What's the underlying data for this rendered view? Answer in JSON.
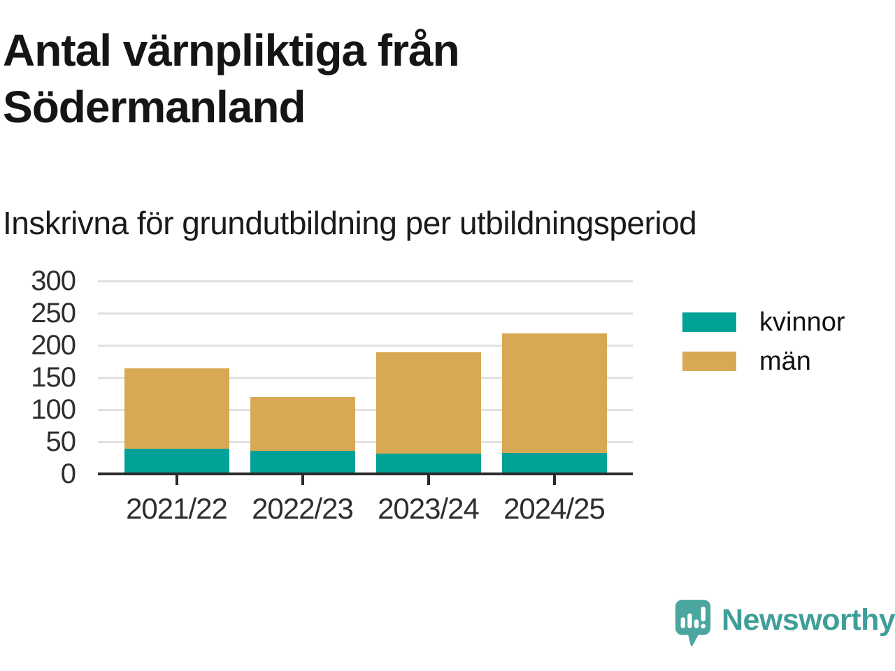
{
  "header": {
    "title": "Antal värnpliktiga från Södermanland",
    "subtitle": "Inskrivna för grundutbildning per utbildningsperiod"
  },
  "chart_data": {
    "type": "bar",
    "stacked": true,
    "title": "Antal värnpliktiga från Södermanland",
    "subtitle": "Inskrivna för grundutbildning per utbildningsperiod",
    "categories": [
      "2021/22",
      "2022/23",
      "2023/24",
      "2024/25"
    ],
    "series": [
      {
        "name": "kvinnor",
        "color": "#00A197",
        "values": [
          39,
          36,
          32,
          33
        ]
      },
      {
        "name": "män",
        "color": "#D8A954",
        "values": [
          125,
          84,
          157,
          185
        ]
      }
    ],
    "xlabel": "",
    "ylabel": "",
    "ylim": [
      0,
      300
    ],
    "yticks": [
      0,
      50,
      100,
      150,
      200,
      250,
      300
    ],
    "grid": true,
    "legend_position": "right"
  },
  "footer": {
    "brand": "Newsworthy",
    "logo_icon": "bar-chart-speech-bubble-icon"
  },
  "colors": {
    "kvinnor": "#00A197",
    "man": "#D8A954",
    "brand_teal": "#3F9E98",
    "logo_bubble": "#4AA69E",
    "gridline": "#e1e1e1",
    "axis": "#2b2b2b"
  }
}
